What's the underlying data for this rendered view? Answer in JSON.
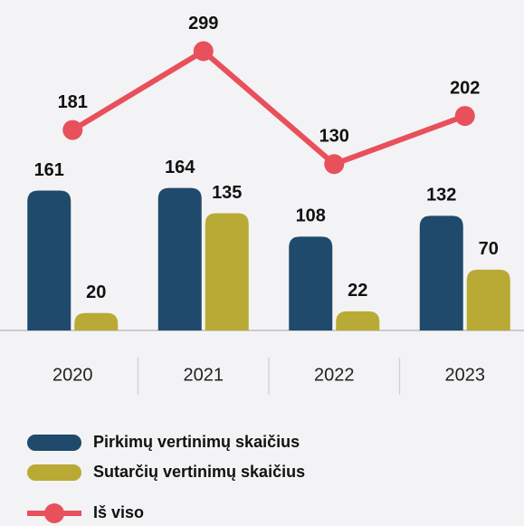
{
  "chart_data": {
    "type": "bar",
    "categories": [
      "2020",
      "2021",
      "2022",
      "2023"
    ],
    "series": [
      {
        "name": "Pirkimų vertinimų skaičius",
        "color": "#1f4a6b",
        "type": "bar",
        "values": [
          161,
          164,
          108,
          132
        ]
      },
      {
        "name": "Sutarčių vertinimų skaičius",
        "color": "#b8aa35",
        "type": "bar",
        "values": [
          20,
          135,
          22,
          70
        ]
      },
      {
        "name": "Iš viso",
        "color": "#e8505b",
        "type": "line",
        "axis": "y2",
        "values": [
          181,
          299,
          130,
          202
        ]
      }
    ],
    "ylim": [
      0,
      370
    ],
    "y2lim": [
      -119,
      362
    ],
    "grid": false
  }
}
